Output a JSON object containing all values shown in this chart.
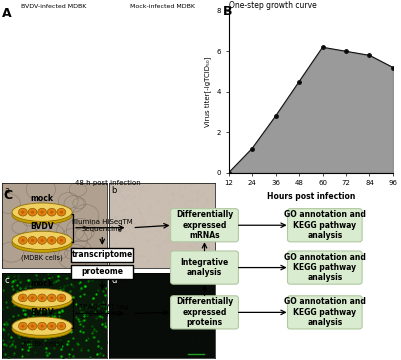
{
  "panel_b": {
    "title": "One-step growth curve",
    "x": [
      12,
      24,
      36,
      48,
      60,
      72,
      84,
      96
    ],
    "y": [
      0.0,
      1.2,
      2.8,
      4.5,
      6.2,
      6.0,
      5.8,
      5.2
    ],
    "xlabel": "Hours post infection",
    "ylabel": "Virus titer[-lgTCID₅₀]",
    "fill_color": "#888888",
    "line_color": "#111111",
    "marker_color": "#111111",
    "xlim": [
      12,
      96
    ],
    "ylim": [
      0,
      8
    ],
    "yticks": [
      0,
      2,
      4,
      6,
      8
    ],
    "xticks": [
      12,
      24,
      36,
      48,
      60,
      72,
      84,
      96
    ]
  },
  "panel_a": {
    "label_top_left": "BVDV-infected MDBK",
    "label_top_right": "Mock-infected MDBK",
    "label_bottom": "48 h post infection",
    "sub_labels": [
      "a",
      "b",
      "c",
      "d"
    ],
    "img_colors": [
      "#b8a898",
      "#c8bdb0",
      "#1a7a1a",
      "#050a05"
    ]
  },
  "panel_c": {
    "green_color": "#daecd0",
    "green_edge": "#b0c8a0"
  }
}
